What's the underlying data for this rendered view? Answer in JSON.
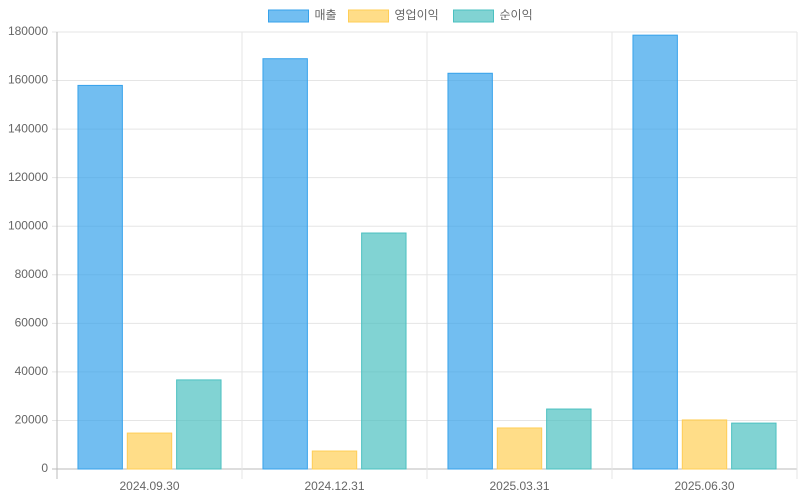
{
  "chart_data": {
    "type": "bar",
    "categories": [
      "2024.09.30",
      "2024.12.31",
      "2025.03.31",
      "2025.06.30"
    ],
    "series": [
      {
        "name": "매출",
        "color": "#36a2eb",
        "values": [
          158000,
          169000,
          163000,
          178700
        ]
      },
      {
        "name": "영업이익",
        "color": "#ffce56",
        "values": [
          14800,
          7400,
          16900,
          20200
        ]
      },
      {
        "name": "순이익",
        "color": "#4bc0c0",
        "values": [
          36700,
          97200,
          24700,
          18900
        ]
      }
    ],
    "ylim": [
      0,
      180000
    ],
    "yticks": [
      0,
      20000,
      40000,
      60000,
      80000,
      100000,
      120000,
      140000,
      160000,
      180000
    ],
    "grid": true,
    "legend": "top"
  }
}
